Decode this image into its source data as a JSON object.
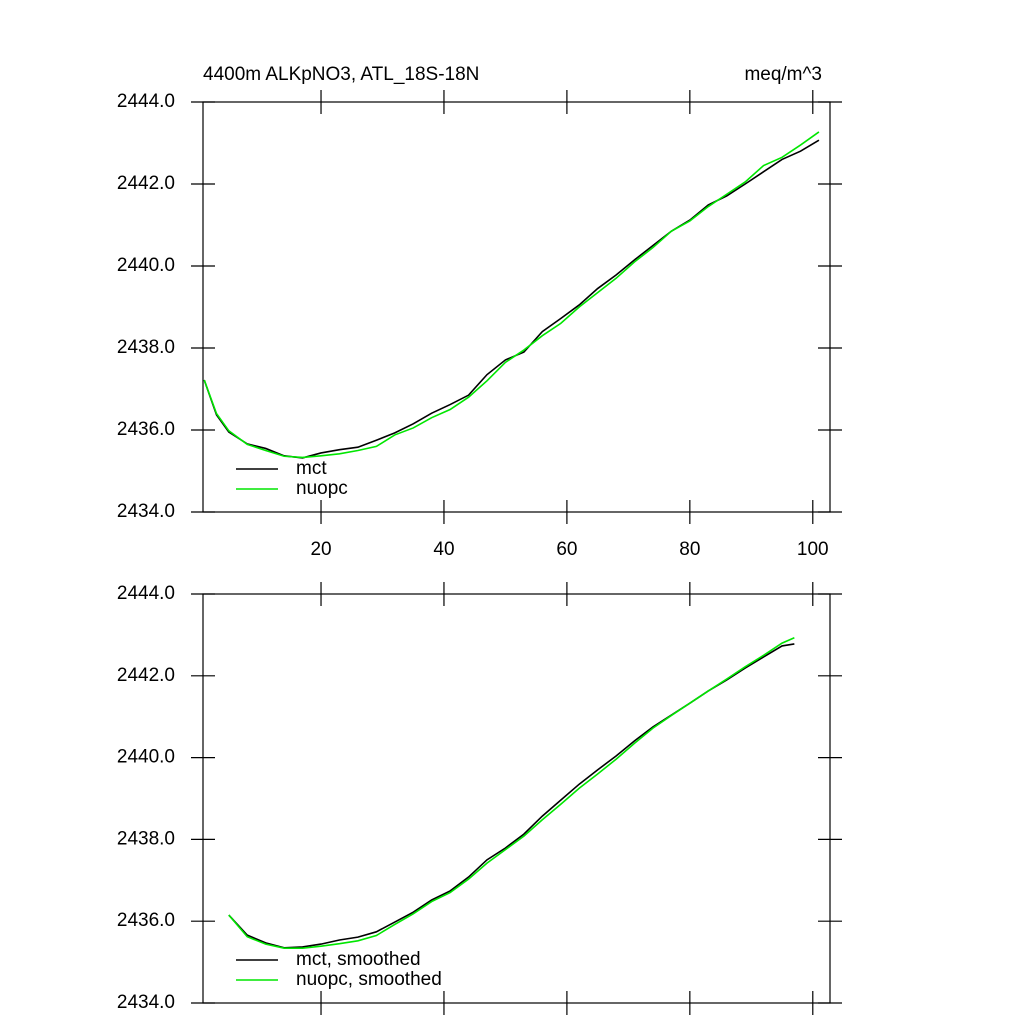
{
  "chart_data": [
    {
      "type": "line",
      "title": "4400m ALKpNO3, ATL_18S-18N",
      "units": "meq/m^3",
      "x": [
        1,
        3,
        5,
        8,
        11,
        14,
        17,
        20,
        23,
        26,
        29,
        32,
        35,
        38,
        41,
        44,
        47,
        50,
        53,
        56,
        59,
        62,
        65,
        68,
        71,
        74,
        77,
        80,
        83,
        86,
        89,
        92,
        95,
        98,
        101
      ],
      "series": [
        {
          "name": "mct",
          "color": "#000000",
          "values": [
            2437.22,
            2436.37,
            2435.95,
            2435.66,
            2435.55,
            2435.37,
            2435.32,
            2435.44,
            2435.52,
            2435.58,
            2435.75,
            2435.93,
            2436.15,
            2436.41,
            2436.62,
            2436.85,
            2437.35,
            2437.71,
            2437.9,
            2438.4,
            2438.72,
            2439.05,
            2439.45,
            2439.78,
            2440.15,
            2440.5,
            2440.85,
            2441.12,
            2441.49,
            2441.71,
            2442.0,
            2442.3,
            2442.6,
            2442.8,
            2443.07
          ]
        },
        {
          "name": "nuopc",
          "color": "#00e600",
          "values": [
            2437.22,
            2436.4,
            2435.98,
            2435.65,
            2435.5,
            2435.36,
            2435.33,
            2435.37,
            2435.42,
            2435.5,
            2435.6,
            2435.88,
            2436.05,
            2436.3,
            2436.5,
            2436.8,
            2437.2,
            2437.65,
            2437.95,
            2438.3,
            2438.6,
            2439.0,
            2439.35,
            2439.7,
            2440.1,
            2440.45,
            2440.85,
            2441.1,
            2441.45,
            2441.75,
            2442.05,
            2442.45,
            2442.65,
            2442.95,
            2443.27
          ]
        }
      ],
      "xlim": [
        0.8,
        102.8
      ],
      "xticks": [
        20,
        40,
        60,
        80,
        100
      ],
      "show_xtick_labels": true,
      "ylim": [
        2434,
        2444
      ],
      "yticks": [
        {
          "value": 2434,
          "label": "2434.0"
        },
        {
          "value": 2436,
          "label": "2436.0"
        },
        {
          "value": 2438,
          "label": "2438.0"
        },
        {
          "value": 2440,
          "label": "2440.0"
        },
        {
          "value": 2442,
          "label": "2442.0"
        },
        {
          "value": 2444,
          "label": "2444.0"
        }
      ],
      "legend": "lower left"
    },
    {
      "type": "line",
      "x": [
        5,
        8,
        11,
        14,
        17,
        20,
        23,
        26,
        29,
        32,
        35,
        38,
        41,
        44,
        47,
        50,
        53,
        56,
        59,
        62,
        65,
        68,
        71,
        74,
        77,
        80,
        83,
        86,
        89,
        92,
        95,
        97
      ],
      "series": [
        {
          "name": "mct, smoothed",
          "color": "#000000",
          "values": [
            2436.15,
            2435.66,
            2435.47,
            2435.35,
            2435.37,
            2435.44,
            2435.54,
            2435.61,
            2435.74,
            2435.98,
            2436.22,
            2436.52,
            2436.74,
            2437.08,
            2437.5,
            2437.79,
            2438.13,
            2438.57,
            2438.96,
            2439.35,
            2439.7,
            2440.04,
            2440.41,
            2440.75,
            2441.04,
            2441.33,
            2441.63,
            2441.9,
            2442.19,
            2442.46,
            2442.73,
            2442.78
          ]
        },
        {
          "name": "nuopc, smoothed",
          "color": "#00e600",
          "values": [
            2436.15,
            2435.62,
            2435.44,
            2435.34,
            2435.34,
            2435.39,
            2435.45,
            2435.52,
            2435.65,
            2435.92,
            2436.18,
            2436.48,
            2436.7,
            2437.03,
            2437.42,
            2437.75,
            2438.08,
            2438.48,
            2438.86,
            2439.25,
            2439.6,
            2439.96,
            2440.35,
            2440.72,
            2441.03,
            2441.33,
            2441.63,
            2441.92,
            2442.22,
            2442.5,
            2442.8,
            2442.93
          ]
        }
      ],
      "xlim": [
        0.8,
        102.8
      ],
      "xticks": [
        20,
        40,
        60,
        80,
        100
      ],
      "show_xtick_labels": false,
      "ylim": [
        2434,
        2444
      ],
      "yticks": [
        {
          "value": 2434,
          "label": "2434.0"
        },
        {
          "value": 2436,
          "label": "2436.0"
        },
        {
          "value": 2438,
          "label": "2438.0"
        },
        {
          "value": 2440,
          "label": "2440.0"
        },
        {
          "value": 2442,
          "label": "2442.0"
        },
        {
          "value": 2444,
          "label": "2444.0"
        }
      ],
      "legend": "lower left"
    }
  ]
}
